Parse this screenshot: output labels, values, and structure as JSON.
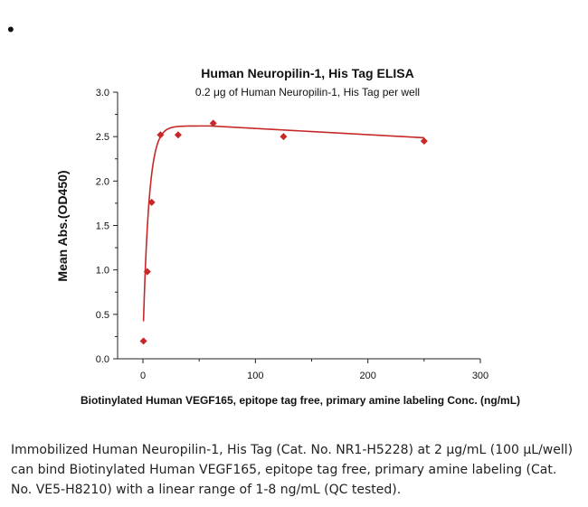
{
  "bullet": "•",
  "colors": {
    "series": "#c62828",
    "axis": "#222222",
    "text": "#111111"
  },
  "chart_data": {
    "type": "line",
    "title": "Human Neuropilin-1, His Tag ELISA",
    "subtitle": "0.2 μg of Human Neuropilin-1, His Tag per well",
    "xlabel": "Biotinylated Human VEGF165, epitope tag free, primary amine labeling Conc. (ng/mL)",
    "ylabel": "Mean Abs.(OD450)",
    "xlim": [
      0,
      300
    ],
    "ylim": [
      0,
      3.0
    ],
    "x_ticks": [
      0,
      100,
      200,
      300
    ],
    "y_ticks": [
      0.0,
      0.5,
      1.0,
      1.5,
      2.0,
      2.5,
      3.0
    ],
    "x_tick_labels": [
      "0",
      "100",
      "200",
      "300"
    ],
    "y_tick_labels": [
      "0.0",
      "0.5",
      "1.0",
      "1.5",
      "2.0",
      "2.5",
      "3.0"
    ],
    "grid": false,
    "series": [
      {
        "x": [
          0.5,
          3.9,
          7.8,
          15.6,
          31.3,
          62.5,
          125,
          250
        ],
        "y": [
          0.2,
          0.98,
          1.76,
          2.52,
          2.52,
          2.65,
          2.5,
          2.45
        ],
        "color": "#c62828"
      }
    ]
  },
  "caption": "Immobilized Human Neuropilin-1, His Tag (Cat. No. NR1-H5228) at 2 μg/mL (100 μL/well) can bind Biotinylated Human VEGF165, epitope tag free, primary amine labeling (Cat. No. VE5-H8210) with a linear range of 1-8 ng/mL (QC tested)."
}
